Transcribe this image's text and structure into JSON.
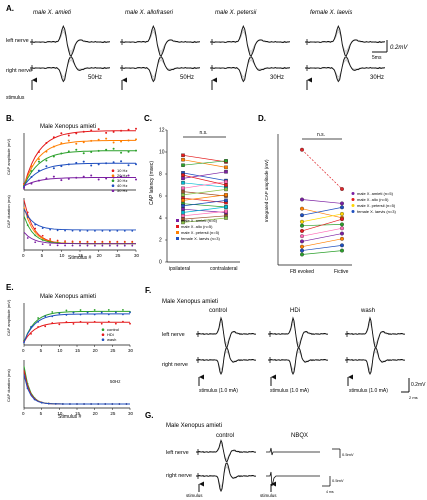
{
  "panelA": {
    "label": "A.",
    "titles": [
      "male X. amieti",
      "male X. allofraseri",
      "male X. petersii",
      "female X. laevis"
    ],
    "rows": [
      "left nerve",
      "right nerve"
    ],
    "freqs": [
      "50Hz",
      "50Hz",
      "30Hz",
      "30Hz"
    ],
    "stimulus": "stimulus",
    "scale_v": "0.2mV",
    "scale_t": "5ms"
  },
  "panelB": {
    "label": "B.",
    "title": "Male Xenopus amieti",
    "ylabel_top": "CAP amplitude (mV)",
    "ylabel_bottom": "CAP duration (ms)",
    "xlabel": "Stimulus #",
    "legend": [
      "10 Hz",
      "20 Hz",
      "30 Hz",
      "40 Hz",
      "50 Hz"
    ],
    "xticks": [
      "0",
      "5",
      "10",
      "15",
      "20",
      "25",
      "30"
    ]
  },
  "panelC": {
    "label": "C.",
    "ylabel": "CAP latency (msec)",
    "yticks": [
      "0",
      "2",
      "4",
      "6",
      "8",
      "10",
      "12"
    ],
    "xcats": [
      "ipsilateral",
      "contralateral"
    ],
    "ns": "n.s.",
    "legend": [
      "male X. amieti (n=6)",
      "male X. allo (n=5)",
      "male X. petersii (n=5)",
      "female X. laevis (n=3)"
    ]
  },
  "panelD": {
    "label": "D.",
    "ylabel": "Integrated CAP amplitude (mV)",
    "xcats": [
      "FB evoked",
      "Fictive"
    ],
    "ns": "n.s.",
    "legend": [
      "male X. amieti (n=5)",
      "male X. allo (n=5)",
      "male X. petersii (n=5)",
      "female X. laevis (n=3)"
    ]
  },
  "panelE": {
    "label": "E.",
    "title": "Male Xenopus amieti",
    "ylabel_top": "CAP amplitude (mV)",
    "ylabel_bottom": "CAP duration (ms)",
    "xlabel": "Stimulus #",
    "legend": [
      "control",
      "HDi",
      "wash"
    ],
    "freq": "50Hz",
    "xticks": [
      "0",
      "5",
      "10",
      "15",
      "20",
      "25",
      "30"
    ]
  },
  "panelF": {
    "label": "F.",
    "title": "Male Xenopus amieti",
    "conditions": [
      "control",
      "HDi",
      "wash"
    ],
    "rows": [
      "left nerve",
      "right nerve"
    ],
    "stim_labels": [
      "stimulus (1.0 mA)",
      "stimulus (1.0 mA)",
      "stimulus (1.0 mA)"
    ],
    "scale_v": "0.2mV",
    "scale_t": "2 ms"
  },
  "panelG": {
    "label": "G.",
    "title": "Male Xenopus amieti",
    "conditions": [
      "control",
      "NBQX"
    ],
    "rows": [
      "left nerve",
      "right nerve"
    ],
    "stim_labels": [
      "stimulus",
      "stimulus"
    ],
    "scale_v": "0.5mV",
    "scale_t": "4 ms"
  },
  "colors": {
    "trace": "#111111",
    "gray": "#999999",
    "s10": "#e41a1c",
    "s20": "#ff7f00",
    "s30": "#2ca02c",
    "s40": "#1f4fbf",
    "s50": "#7b1fa2",
    "dashed_red": "#e0262a"
  }
}
